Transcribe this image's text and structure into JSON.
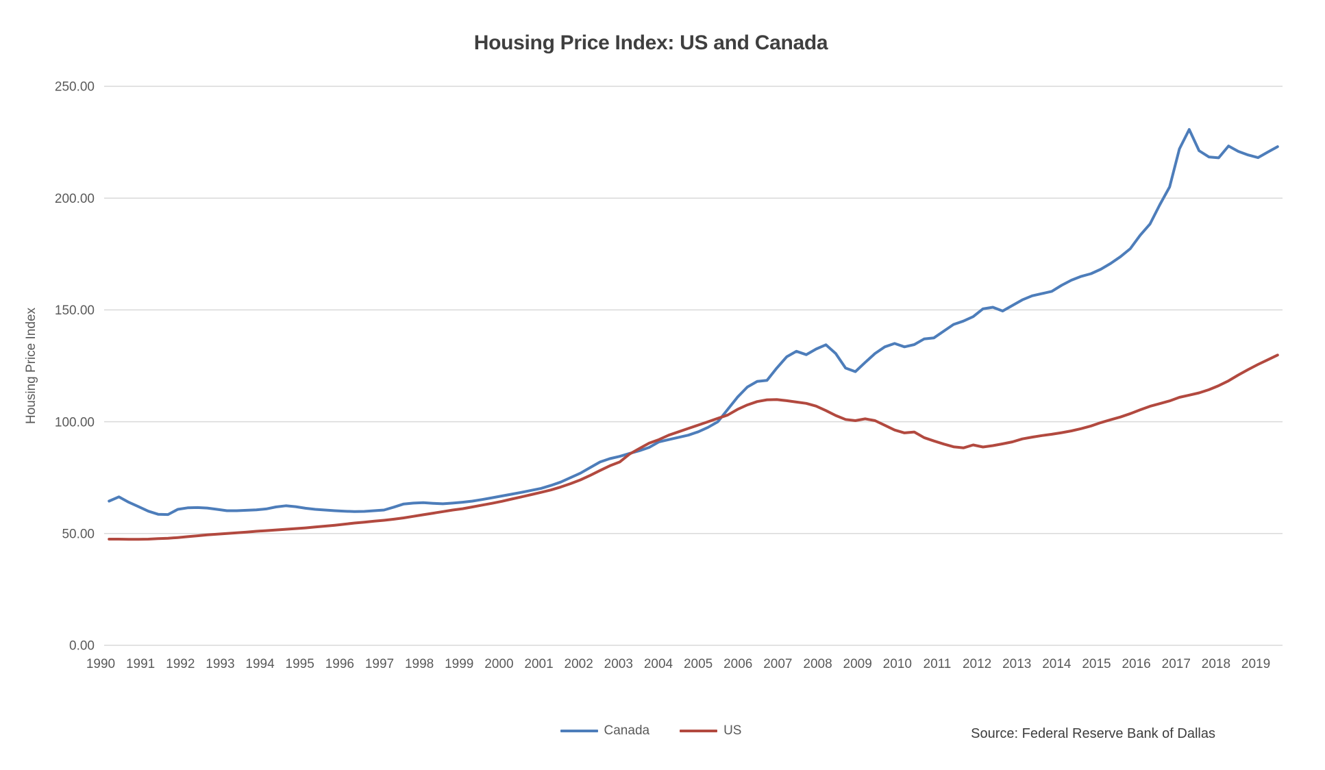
{
  "source_note": "Source: Federal Reserve Bank of Dallas",
  "colors": {
    "canada_line": "#4d7dba",
    "us_line": "#b2493f",
    "gridline": "#d9d9d9",
    "title_text": "#3f3f3f",
    "axis_text": "#595959"
  },
  "chart_data": {
    "type": "line",
    "title": "Housing Price Index: US and Canada",
    "xlabel": "",
    "ylabel": "Housing Price Index",
    "ylim": [
      0,
      250
    ],
    "grid": "horizontal",
    "legend_position": "bottom-center",
    "x_frequency": "quarterly",
    "x_start": "1990Q1",
    "x_end": "2019Q4",
    "y_tick_labels": [
      "0.00",
      "50.00",
      "100.00",
      "150.00",
      "200.00",
      "250.00"
    ],
    "x_tick_labels": [
      "1990",
      "1991",
      "1992",
      "1993",
      "1994",
      "1995",
      "1996",
      "1997",
      "1998",
      "1999",
      "2000",
      "2001",
      "2002",
      "2003",
      "2004",
      "2005",
      "2006",
      "2007",
      "2008",
      "2009",
      "2010",
      "2011",
      "2012",
      "2013",
      "2014",
      "2015",
      "2016",
      "2017",
      "2018",
      "2019"
    ],
    "series": [
      {
        "name": "Canada",
        "color": "#4d7dba",
        "values": [
          64.5,
          66.4,
          64.0,
          62.0,
          60.0,
          58.6,
          58.5,
          60.8,
          61.5,
          61.6,
          61.4,
          60.8,
          60.2,
          60.2,
          60.4,
          60.6,
          61.0,
          61.9,
          62.4,
          62.0,
          61.3,
          60.8,
          60.5,
          60.2,
          60.0,
          59.8,
          59.9,
          60.2,
          60.5,
          61.8,
          63.2,
          63.6,
          63.8,
          63.5,
          63.3,
          63.6,
          64.0,
          64.5,
          65.2,
          66.0,
          66.8,
          67.6,
          68.4,
          69.3,
          70.2,
          71.5,
          73.0,
          75.0,
          77.0,
          79.5,
          82.0,
          83.5,
          84.5,
          85.8,
          87.0,
          88.5,
          91.0,
          92.0,
          93.0,
          94.0,
          95.5,
          97.5,
          100.0,
          105.5,
          111.0,
          115.5,
          118.0,
          118.5,
          124.0,
          129.0,
          131.5,
          130.0,
          132.5,
          134.4,
          130.5,
          124.0,
          122.4,
          126.5,
          130.5,
          133.5,
          135.0,
          133.5,
          134.5,
          137.0,
          137.5,
          140.5,
          143.5,
          145.0,
          147.0,
          150.5,
          151.2,
          149.5,
          152.0,
          154.5,
          156.3,
          157.3,
          158.3,
          161.0,
          163.3,
          165.0,
          166.2,
          168.2,
          170.8,
          173.8,
          177.4,
          183.4,
          188.4,
          197.0,
          205.0,
          222.0,
          230.7,
          221.2,
          218.4,
          218.0,
          223.3,
          220.9,
          219.3,
          218.1,
          220.6,
          223.0
        ]
      },
      {
        "name": "US",
        "color": "#b2493f",
        "values": [
          47.5,
          47.5,
          47.4,
          47.4,
          47.5,
          47.7,
          47.9,
          48.2,
          48.6,
          49.0,
          49.4,
          49.7,
          50.0,
          50.3,
          50.6,
          51.0,
          51.3,
          51.6,
          51.9,
          52.2,
          52.5,
          52.9,
          53.3,
          53.7,
          54.2,
          54.7,
          55.1,
          55.5,
          55.9,
          56.4,
          57.0,
          57.7,
          58.4,
          59.1,
          59.8,
          60.5,
          61.1,
          61.9,
          62.7,
          63.5,
          64.4,
          65.4,
          66.4,
          67.4,
          68.4,
          69.5,
          70.8,
          72.3,
          74.0,
          76.0,
          78.2,
          80.3,
          82.0,
          85.5,
          88.0,
          90.4,
          92.0,
          94.0,
          95.5,
          97.0,
          98.5,
          100.0,
          101.5,
          103.0,
          105.5,
          107.5,
          109.0,
          109.8,
          109.9,
          109.4,
          108.8,
          108.2,
          107.0,
          105.0,
          102.8,
          101.0,
          100.5,
          101.3,
          100.5,
          98.4,
          96.3,
          95.0,
          95.4,
          92.9,
          91.4,
          90.0,
          88.8,
          88.3,
          89.6,
          88.7,
          89.3,
          90.1,
          91.0,
          92.3,
          93.1,
          93.8,
          94.4,
          95.1,
          95.9,
          96.9,
          98.1,
          99.6,
          100.9,
          102.1,
          103.6,
          105.3,
          106.9,
          108.1,
          109.3,
          110.9,
          111.9,
          112.9,
          114.3,
          116.1,
          118.3,
          120.9,
          123.3,
          125.6,
          127.7,
          129.8
        ]
      }
    ]
  }
}
